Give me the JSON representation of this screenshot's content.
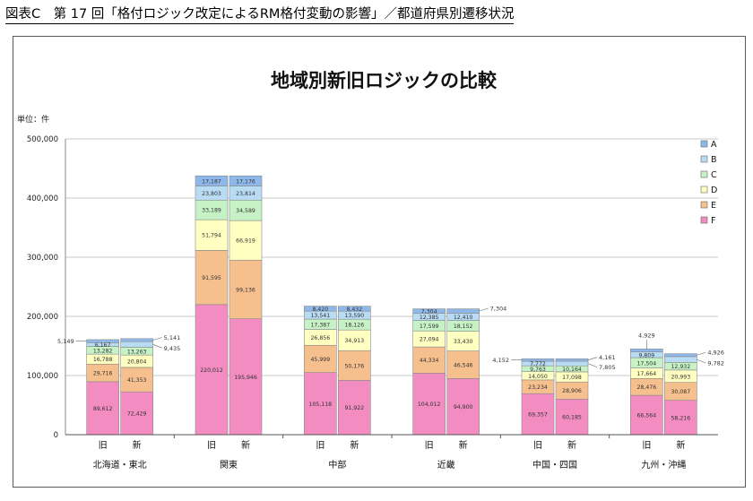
{
  "figure_title": "図表C　第 17 回「格付ロジック改定によるRM格付変動の影響」／都道府県別遷移状況",
  "chart_data": {
    "type": "bar",
    "stacked": true,
    "title": "地域別新旧ロジックの比較",
    "unit_label": "単位：件",
    "ylim": [
      0,
      500000
    ],
    "yticks": [
      "0",
      "100,000",
      "200,000",
      "300,000",
      "400,000",
      "500,000"
    ],
    "grid": true,
    "legend_position": "right",
    "legend": [
      "A",
      "B",
      "C",
      "D",
      "E",
      "F"
    ],
    "colors": {
      "F": "#f28cc1",
      "E": "#f6c08e",
      "D": "#ffffc2",
      "C": "#c6f2c6",
      "B": "#b9dcf5",
      "A": "#8fb8ea"
    },
    "groups": [
      {
        "name": "北海道・東北",
        "bars": [
          {
            "label": "旧",
            "segments": {
              "F": 89612,
              "E": 29716,
              "D": 16788,
              "C": 13282,
              "B": 6167,
              "A": 5149
            },
            "labels": {
              "F": "89,612",
              "E": "29,716",
              "D": "16,788",
              "C": "13,282",
              "B": "6,167",
              "A": "5,149"
            }
          },
          {
            "label": "新",
            "segments": {
              "F": 72429,
              "E": 41353,
              "D": 20804,
              "C": 13263,
              "B": 9435,
              "A": 5141
            },
            "labels": {
              "F": "72,429",
              "E": "41,353",
              "D": "20,804",
              "C": "13,263",
              "B": "9,435",
              "A": "5,141"
            }
          }
        ],
        "outside": [
          {
            "side": "left",
            "text": "5,149",
            "seg": "A"
          },
          {
            "side": "right",
            "text": "5,141",
            "seg": "A"
          },
          {
            "side": "right",
            "text": "9,435",
            "seg": "B"
          }
        ]
      },
      {
        "name": "関東",
        "bars": [
          {
            "label": "旧",
            "segments": {
              "F": 220012,
              "E": 91595,
              "D": 51794,
              "C": 33189,
              "B": 23803,
              "A": 17187
            },
            "labels": {
              "F": "220,012",
              "E": "91,595",
              "D": "51,794",
              "C": "33,189",
              "B": "23,803",
              "A": "17,187"
            }
          },
          {
            "label": "新",
            "segments": {
              "F": 195946,
              "E": 99136,
              "D": 66919,
              "C": 34589,
              "B": 23814,
              "A": 17176
            },
            "labels": {
              "F": "195,946",
              "E": "99,136",
              "D": "66,919",
              "C": "34,589",
              "B": "23,814",
              "A": "17,176"
            }
          }
        ],
        "outside": []
      },
      {
        "name": "中部",
        "bars": [
          {
            "label": "旧",
            "segments": {
              "F": 105118,
              "E": 45999,
              "D": 26856,
              "C": 17387,
              "B": 13541,
              "A": 8420
            },
            "labels": {
              "F": "105,118",
              "E": "45,999",
              "D": "26,856",
              "C": "17,387",
              "B": "13,541",
              "A": "8,420"
            }
          },
          {
            "label": "新",
            "segments": {
              "F": 91922,
              "E": 50176,
              "D": 34913,
              "C": 18126,
              "B": 13590,
              "A": 8432
            },
            "labels": {
              "F": "91,922",
              "E": "50,176",
              "D": "34,913",
              "C": "18,126",
              "B": "13,590",
              "A": "8,432"
            }
          }
        ],
        "outside": []
      },
      {
        "name": "近畿",
        "bars": [
          {
            "label": "旧",
            "segments": {
              "F": 104012,
              "E": 44334,
              "D": 27094,
              "C": 17599,
              "B": 12385,
              "A": 7304
            },
            "labels": {
              "F": "104,012",
              "E": "44,334",
              "D": "27,094",
              "C": "17,599",
              "B": "12,385",
              "A": "7,304"
            }
          },
          {
            "label": "新",
            "segments": {
              "F": 94900,
              "E": 46546,
              "D": 33430,
              "C": 18152,
              "B": 12410,
              "A": 7304
            },
            "labels": {
              "F": "94,900",
              "E": "46,546",
              "D": "33,430",
              "C": "18,152",
              "B": "12,410",
              "A": "7,304"
            }
          }
        ],
        "outside": [
          {
            "side": "right",
            "text": "7,304",
            "seg": "A"
          }
        ]
      },
      {
        "name": "中国・四国",
        "bars": [
          {
            "label": "旧",
            "segments": {
              "F": 69357,
              "E": 23234,
              "D": 14050,
              "C": 9763,
              "B": 7772,
              "A": 4152
            },
            "labels": {
              "F": "69,357",
              "E": "23,234",
              "D": "14,050",
              "C": "9,763",
              "B": "7,772",
              "A": "4,152"
            }
          },
          {
            "label": "新",
            "segments": {
              "F": 60185,
              "E": 28906,
              "D": 17098,
              "C": 10164,
              "B": 7805,
              "A": 4161
            },
            "labels": {
              "F": "60,185",
              "E": "28,906",
              "D": "17,098",
              "C": "10,164",
              "B": "7,805",
              "A": "4,161"
            }
          }
        ],
        "outside": [
          {
            "side": "left",
            "text": "4,152",
            "seg": "A"
          },
          {
            "side": "right",
            "text": "4,161",
            "seg": "A"
          },
          {
            "side": "right",
            "text": "7,805",
            "seg": "B"
          }
        ]
      },
      {
        "name": "九州・沖縄",
        "bars": [
          {
            "label": "旧",
            "segments": {
              "F": 66564,
              "E": 28476,
              "D": 17664,
              "C": 17504,
              "B": 9809,
              "A": 4929
            },
            "labels": {
              "F": "66,564",
              "E": "28,476",
              "D": "17,664",
              "C": "17,504",
              "B": "9,809",
              "A": "4,929"
            }
          },
          {
            "label": "新",
            "segments": {
              "F": 58216,
              "E": 30087,
              "D": 20993,
              "C": 12932,
              "B": 9782,
              "A": 4926
            },
            "labels": {
              "F": "58,216",
              "E": "30,087",
              "D": "20,993",
              "C": "12,932",
              "B": "9,782",
              "A": "4,926"
            }
          }
        ],
        "outside": [
          {
            "side": "top",
            "text": "4,929",
            "seg": "A"
          },
          {
            "side": "right",
            "text": "4,926",
            "seg": "A"
          },
          {
            "side": "right",
            "text": "9,782",
            "seg": "B"
          }
        ]
      }
    ]
  }
}
